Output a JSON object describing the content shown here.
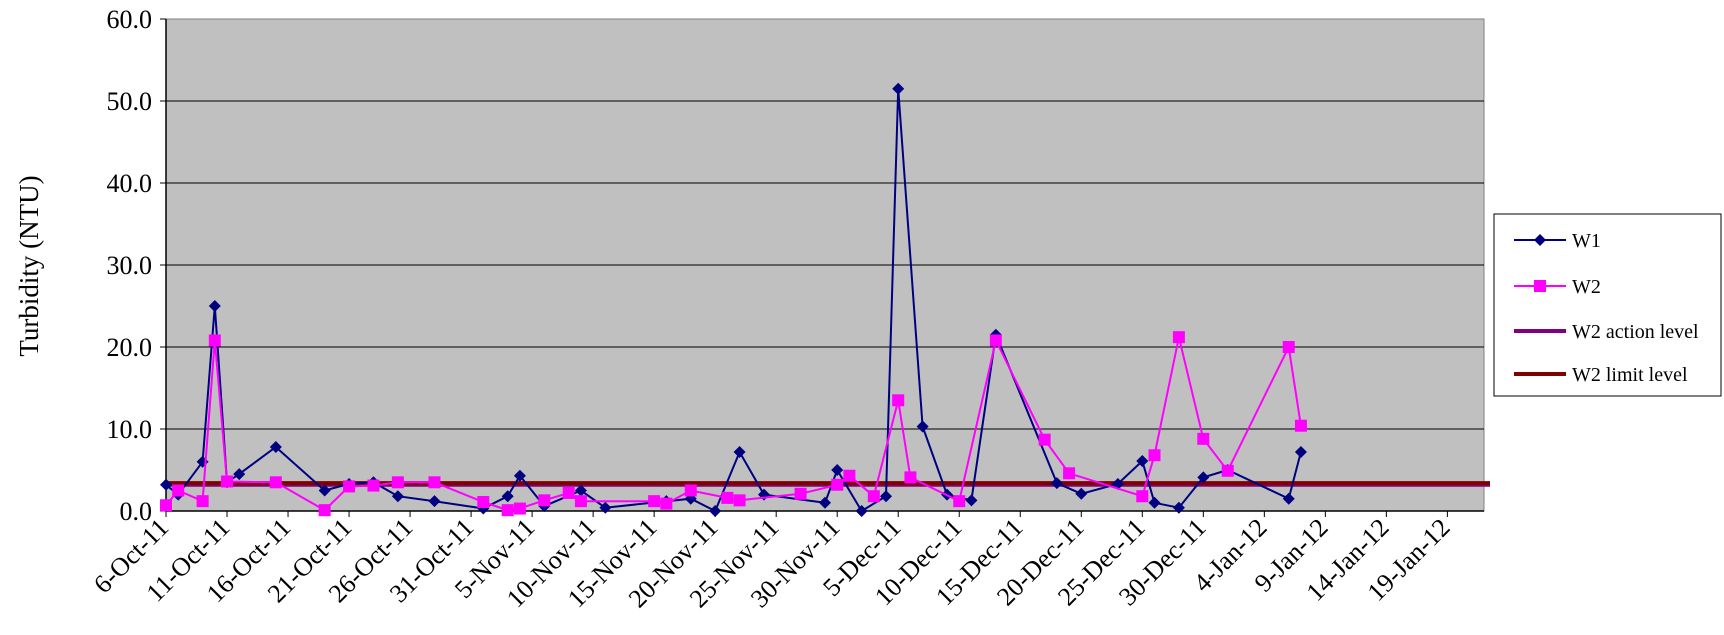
{
  "chart_data": {
    "type": "line",
    "title": "",
    "xlabel": "",
    "ylabel": "Turbidity (NTU)",
    "ylim": [
      0,
      60
    ],
    "yticks": [
      "0.0",
      "10.0",
      "20.0",
      "30.0",
      "40.0",
      "50.0",
      "60.0"
    ],
    "xlim": [
      "2011-10-06",
      "2012-01-22"
    ],
    "xticks": [
      {
        "date": "2011-10-06",
        "label": "6-Oct-11"
      },
      {
        "date": "2011-10-11",
        "label": "11-Oct-11"
      },
      {
        "date": "2011-10-16",
        "label": "16-Oct-11"
      },
      {
        "date": "2011-10-21",
        "label": "21-Oct-11"
      },
      {
        "date": "2011-10-26",
        "label": "26-Oct-11"
      },
      {
        "date": "2011-10-31",
        "label": "31-Oct-11"
      },
      {
        "date": "2011-11-05",
        "label": "5-Nov-11"
      },
      {
        "date": "2011-11-10",
        "label": "10-Nov-11"
      },
      {
        "date": "2011-11-15",
        "label": "15-Nov-11"
      },
      {
        "date": "2011-11-20",
        "label": "20-Nov-11"
      },
      {
        "date": "2011-11-25",
        "label": "25-Nov-11"
      },
      {
        "date": "2011-11-30",
        "label": "30-Nov-11"
      },
      {
        "date": "2011-12-05",
        "label": "5-Dec-11"
      },
      {
        "date": "2011-12-10",
        "label": "10-Dec-11"
      },
      {
        "date": "2011-12-15",
        "label": "15-Dec-11"
      },
      {
        "date": "2011-12-20",
        "label": "20-Dec-11"
      },
      {
        "date": "2011-12-25",
        "label": "25-Dec-11"
      },
      {
        "date": "2011-12-30",
        "label": "30-Dec-11"
      },
      {
        "date": "2012-01-04",
        "label": "4-Jan-12"
      },
      {
        "date": "2012-01-09",
        "label": "9-Jan-12"
      },
      {
        "date": "2012-01-14",
        "label": "14-Jan-12"
      },
      {
        "date": "2012-01-19",
        "label": "19-Jan-12"
      }
    ],
    "grid": true,
    "legend_position": "right",
    "plot_background": "#c0c0c0",
    "series": [
      {
        "name": "W1",
        "color": "#000080",
        "marker": "diamond",
        "points": [
          [
            "2011-10-06",
            3.2
          ],
          [
            "2011-10-07",
            2.0
          ],
          [
            "2011-10-09",
            6.0
          ],
          [
            "2011-10-10",
            25.0
          ],
          [
            "2011-10-11",
            3.5
          ],
          [
            "2011-10-12",
            4.5
          ],
          [
            "2011-10-15",
            7.8
          ],
          [
            "2011-10-19",
            2.5
          ],
          [
            "2011-10-21",
            3.3
          ],
          [
            "2011-10-23",
            3.5
          ],
          [
            "2011-10-25",
            1.8
          ],
          [
            "2011-10-28",
            1.2
          ],
          [
            "2011-11-01",
            0.3
          ],
          [
            "2011-11-03",
            1.8
          ],
          [
            "2011-11-04",
            4.3
          ],
          [
            "2011-11-06",
            0.6
          ],
          [
            "2011-11-09",
            2.5
          ],
          [
            "2011-11-11",
            0.4
          ],
          [
            "2011-11-16",
            1.2
          ],
          [
            "2011-11-18",
            1.5
          ],
          [
            "2011-11-20",
            0.0
          ],
          [
            "2011-11-22",
            7.2
          ],
          [
            "2011-11-24",
            2.0
          ],
          [
            "2011-11-29",
            1.0
          ],
          [
            "2011-11-30",
            5.0
          ],
          [
            "2011-12-02",
            0.0
          ],
          [
            "2011-12-04",
            1.8
          ],
          [
            "2011-12-05",
            51.5
          ],
          [
            "2011-12-07",
            10.3
          ],
          [
            "2011-12-09",
            2.0
          ],
          [
            "2011-12-11",
            1.3
          ],
          [
            "2011-12-13",
            21.5
          ],
          [
            "2011-12-18",
            3.4
          ],
          [
            "2011-12-20",
            2.1
          ],
          [
            "2011-12-23",
            3.3
          ],
          [
            "2011-12-25",
            6.1
          ],
          [
            "2011-12-26",
            1.0
          ],
          [
            "2011-12-28",
            0.4
          ],
          [
            "2011-12-30",
            4.1
          ],
          [
            "2012-01-01",
            5.0
          ],
          [
            "2012-01-06",
            1.5
          ],
          [
            "2012-01-07",
            7.2
          ]
        ]
      },
      {
        "name": "W2",
        "color": "#ff00ff",
        "marker": "square",
        "points": [
          [
            "2011-10-06",
            0.7
          ],
          [
            "2011-10-07",
            2.5
          ],
          [
            "2011-10-09",
            1.2
          ],
          [
            "2011-10-10",
            20.8
          ],
          [
            "2011-10-11",
            3.6
          ],
          [
            "2011-10-15",
            3.5
          ],
          [
            "2011-10-19",
            0.1
          ],
          [
            "2011-10-21",
            3.0
          ],
          [
            "2011-10-23",
            3.1
          ],
          [
            "2011-10-25",
            3.5
          ],
          [
            "2011-10-28",
            3.5
          ],
          [
            "2011-11-01",
            1.1
          ],
          [
            "2011-11-03",
            0.1
          ],
          [
            "2011-11-04",
            0.3
          ],
          [
            "2011-11-06",
            1.3
          ],
          [
            "2011-11-08",
            2.2
          ],
          [
            "2011-11-09",
            1.2
          ],
          [
            "2011-11-15",
            1.2
          ],
          [
            "2011-11-16",
            0.9
          ],
          [
            "2011-11-18",
            2.5
          ],
          [
            "2011-11-21",
            1.6
          ],
          [
            "2011-11-22",
            1.3
          ],
          [
            "2011-11-27",
            2.1
          ],
          [
            "2011-11-30",
            3.2
          ],
          [
            "2011-12-01",
            4.3
          ],
          [
            "2011-12-03",
            1.8
          ],
          [
            "2011-12-05",
            13.5
          ],
          [
            "2011-12-06",
            4.1
          ],
          [
            "2011-12-10",
            1.2
          ],
          [
            "2011-12-13",
            20.8
          ],
          [
            "2011-12-17",
            8.7
          ],
          [
            "2011-12-19",
            4.6
          ],
          [
            "2011-12-25",
            1.8
          ],
          [
            "2011-12-26",
            6.8
          ],
          [
            "2011-12-28",
            21.2
          ],
          [
            "2011-12-30",
            8.8
          ],
          [
            "2012-01-01",
            4.9
          ],
          [
            "2012-01-06",
            20.0
          ],
          [
            "2012-01-07",
            10.4
          ]
        ]
      },
      {
        "name": "W2 action level",
        "color": "#800080",
        "value": 3.2
      },
      {
        "name": "W2 limit level",
        "color": "#800000",
        "value": 3.4
      }
    ]
  }
}
